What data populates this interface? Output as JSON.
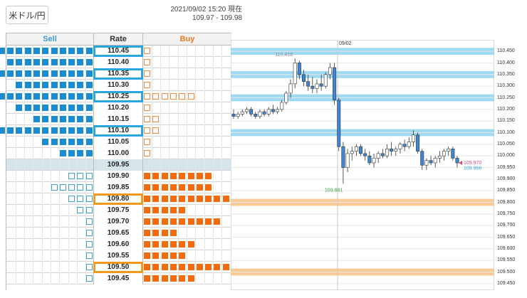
{
  "pair_button": "米ドル/円",
  "timestamp": {
    "line1": "2021/09/02 15:20 現在",
    "line2": "109.97 - 109.98"
  },
  "orderbook": {
    "headers": {
      "sell": "Sell",
      "rate": "Rate",
      "buy": "Buy"
    },
    "rows": [
      {
        "rate": "110.45",
        "sell_filled": 11,
        "sell_outline": 0,
        "buy_filled": 0,
        "buy_outline": 1,
        "highlight": "blue"
      },
      {
        "rate": "110.40",
        "sell_filled": 10,
        "sell_outline": 0,
        "buy_filled": 0,
        "buy_outline": 1,
        "highlight": ""
      },
      {
        "rate": "110.35",
        "sell_filled": 11,
        "sell_outline": 0,
        "buy_filled": 0,
        "buy_outline": 1,
        "highlight": "blue"
      },
      {
        "rate": "110.30",
        "sell_filled": 9,
        "sell_outline": 0,
        "buy_filled": 0,
        "buy_outline": 1,
        "highlight": ""
      },
      {
        "rate": "110.25",
        "sell_filled": 11,
        "sell_outline": 0,
        "buy_filled": 0,
        "buy_outline": 6,
        "highlight": "blue"
      },
      {
        "rate": "110.20",
        "sell_filled": 9,
        "sell_outline": 0,
        "buy_filled": 0,
        "buy_outline": 1,
        "highlight": ""
      },
      {
        "rate": "110.15",
        "sell_filled": 7,
        "sell_outline": 0,
        "buy_filled": 0,
        "buy_outline": 2,
        "highlight": ""
      },
      {
        "rate": "110.10",
        "sell_filled": 11,
        "sell_outline": 0,
        "buy_filled": 0,
        "buy_outline": 2,
        "highlight": "blue"
      },
      {
        "rate": "110.05",
        "sell_filled": 6,
        "sell_outline": 0,
        "buy_filled": 0,
        "buy_outline": 1,
        "highlight": ""
      },
      {
        "rate": "110.00",
        "sell_filled": 4,
        "sell_outline": 0,
        "buy_filled": 0,
        "buy_outline": 1,
        "highlight": ""
      },
      {
        "rate": "109.95",
        "sell_filled": 0,
        "sell_outline": 0,
        "buy_filled": 0,
        "buy_outline": 0,
        "highlight": "mid"
      },
      {
        "rate": "109.90",
        "sell_filled": 0,
        "sell_outline": 3,
        "buy_filled": 8,
        "buy_outline": 0,
        "highlight": ""
      },
      {
        "rate": "109.85",
        "sell_filled": 0,
        "sell_outline": 5,
        "buy_filled": 8,
        "buy_outline": 0,
        "highlight": ""
      },
      {
        "rate": "109.80",
        "sell_filled": 0,
        "sell_outline": 3,
        "buy_filled": 11,
        "buy_outline": 0,
        "highlight": "orange"
      },
      {
        "rate": "109.75",
        "sell_filled": 0,
        "sell_outline": 2,
        "buy_filled": 5,
        "buy_outline": 0,
        "highlight": ""
      },
      {
        "rate": "109.70",
        "sell_filled": 0,
        "sell_outline": 1,
        "buy_filled": 9,
        "buy_outline": 0,
        "highlight": ""
      },
      {
        "rate": "109.65",
        "sell_filled": 0,
        "sell_outline": 1,
        "buy_filled": 4,
        "buy_outline": 0,
        "highlight": ""
      },
      {
        "rate": "109.60",
        "sell_filled": 0,
        "sell_outline": 1,
        "buy_filled": 6,
        "buy_outline": 0,
        "highlight": ""
      },
      {
        "rate": "109.55",
        "sell_filled": 0,
        "sell_outline": 1,
        "buy_filled": 5,
        "buy_outline": 0,
        "highlight": ""
      },
      {
        "rate": "109.50",
        "sell_filled": 0,
        "sell_outline": 1,
        "buy_filled": 11,
        "buy_outline": 0,
        "highlight": "orange"
      },
      {
        "rate": "109.45",
        "sell_filled": 0,
        "sell_outline": 1,
        "buy_filled": 6,
        "buy_outline": 0,
        "highlight": ""
      }
    ]
  },
  "colors": {
    "sell": "#1a8ccf",
    "buy": "#f26c0d",
    "band_blue": "#8fd3f0",
    "band_orange": "#f8c58c",
    "candle": "#3e86d4"
  },
  "chart_data": {
    "type": "candlestick",
    "date_label": "09/02",
    "high_label": "110.418",
    "low_label": "109.881",
    "bid_label": "109.970",
    "ask_label": "109.966",
    "y_ticks": [
      "110.450",
      "110.400",
      "110.350",
      "110.300",
      "110.250",
      "110.200",
      "110.150",
      "110.100",
      "110.050",
      "110.000",
      "109.950",
      "109.900",
      "109.850",
      "109.800",
      "109.750",
      "109.700",
      "109.650",
      "109.600",
      "109.550",
      "109.500",
      "109.450"
    ],
    "ylim": [
      109.425,
      110.475
    ],
    "blue_bands": [
      110.45,
      110.35,
      110.25,
      110.1
    ],
    "orange_bands": [
      109.8,
      109.5
    ],
    "candles": [
      [
        110.18,
        110.2,
        110.16,
        110.17
      ],
      [
        110.17,
        110.19,
        110.16,
        110.18
      ],
      [
        110.18,
        110.2,
        110.17,
        110.19
      ],
      [
        110.19,
        110.21,
        110.18,
        110.2
      ],
      [
        110.2,
        110.21,
        110.17,
        110.18
      ],
      [
        110.18,
        110.19,
        110.16,
        110.17
      ],
      [
        110.17,
        110.2,
        110.16,
        110.19
      ],
      [
        110.19,
        110.2,
        110.17,
        110.18
      ],
      [
        110.18,
        110.21,
        110.17,
        110.2
      ],
      [
        110.2,
        110.22,
        110.18,
        110.19
      ],
      [
        110.19,
        110.21,
        110.18,
        110.2
      ],
      [
        110.2,
        110.24,
        110.19,
        110.23
      ],
      [
        110.23,
        110.28,
        110.22,
        110.27
      ],
      [
        110.27,
        110.33,
        110.25,
        110.31
      ],
      [
        110.31,
        110.42,
        110.29,
        110.4
      ],
      [
        110.4,
        110.41,
        110.33,
        110.35
      ],
      [
        110.35,
        110.37,
        110.3,
        110.32
      ],
      [
        110.32,
        110.35,
        110.28,
        110.3
      ],
      [
        110.3,
        110.34,
        110.27,
        110.29
      ],
      [
        110.29,
        110.33,
        110.27,
        110.31
      ],
      [
        110.31,
        110.35,
        110.28,
        110.3
      ],
      [
        110.3,
        110.36,
        110.29,
        110.35
      ],
      [
        110.35,
        110.4,
        110.33,
        110.38
      ],
      [
        110.38,
        110.4,
        110.22,
        110.24
      ],
      [
        110.24,
        110.25,
        110.02,
        110.04
      ],
      [
        110.04,
        110.06,
        109.88,
        109.95
      ],
      [
        109.95,
        110.03,
        109.93,
        110.01
      ],
      [
        110.01,
        110.04,
        109.98,
        110.02
      ],
      [
        110.02,
        110.05,
        110.0,
        110.04
      ],
      [
        110.04,
        110.05,
        110.0,
        110.01
      ],
      [
        110.01,
        110.03,
        109.98,
        110.0
      ],
      [
        110.0,
        110.02,
        109.96,
        109.97
      ],
      [
        109.97,
        110.01,
        109.95,
        109.99
      ],
      [
        109.99,
        110.02,
        109.97,
        110.01
      ],
      [
        110.01,
        110.03,
        109.99,
        110.0
      ],
      [
        110.0,
        110.05,
        109.99,
        110.03
      ],
      [
        110.03,
        110.06,
        110.0,
        110.02
      ],
      [
        110.02,
        110.04,
        110.0,
        110.03
      ],
      [
        110.03,
        110.06,
        110.01,
        110.05
      ],
      [
        110.05,
        110.07,
        110.02,
        110.04
      ],
      [
        110.04,
        110.08,
        110.03,
        110.06
      ],
      [
        110.06,
        110.11,
        110.04,
        110.09
      ],
      [
        110.09,
        110.1,
        110.01,
        110.02
      ],
      [
        110.02,
        110.03,
        109.94,
        109.96
      ],
      [
        109.96,
        109.99,
        109.94,
        109.98
      ],
      [
        109.98,
        110.0,
        109.96,
        109.97
      ],
      [
        109.97,
        110.0,
        109.95,
        109.99
      ],
      [
        109.99,
        110.02,
        109.97,
        110.0
      ],
      [
        110.0,
        110.03,
        109.98,
        110.02
      ],
      [
        110.02,
        110.04,
        110.0,
        110.03
      ],
      [
        110.03,
        110.04,
        109.98,
        109.99
      ],
      [
        109.99,
        110.0,
        109.95,
        109.97
      ]
    ]
  }
}
